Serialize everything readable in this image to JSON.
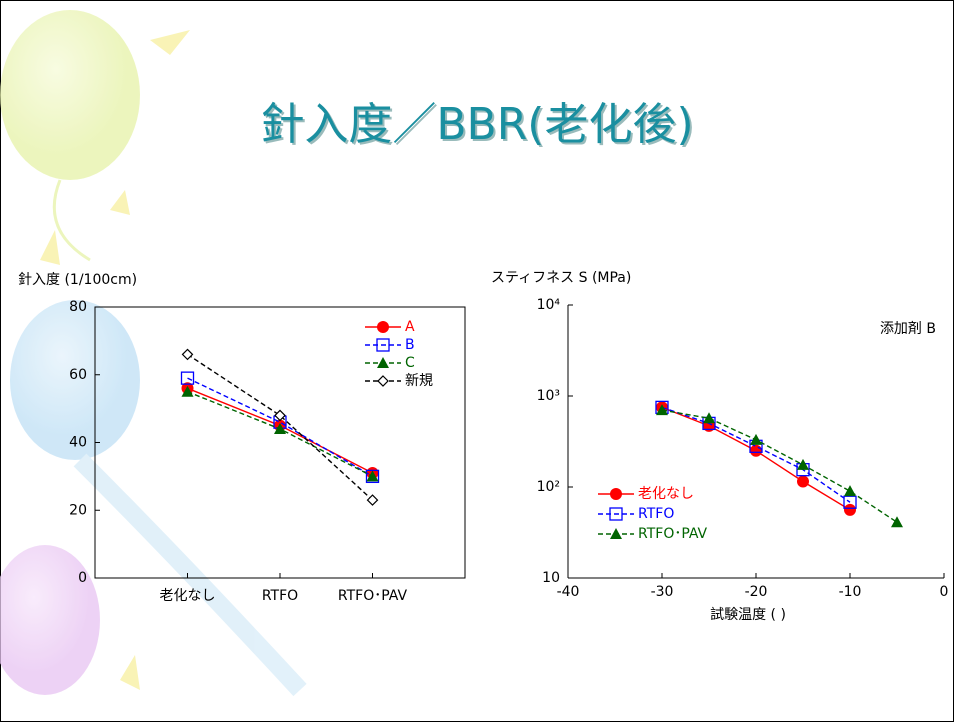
{
  "title": "針入度／BBR(老化後)",
  "chart_data": [
    {
      "type": "line",
      "y_label": "針入度 (1/100cm)",
      "categories": [
        "老化なし",
        "RTFO",
        "RTFO･PAV"
      ],
      "ylim": [
        0,
        80
      ],
      "yticks": [
        0,
        20,
        40,
        60,
        80
      ],
      "log_y": false,
      "legend": "upper right",
      "series": [
        {
          "name": "A",
          "color": "#ff0000",
          "marker": "circle",
          "dashed": false,
          "values": [
            56,
            45,
            31
          ]
        },
        {
          "name": "B",
          "color": "#0000ff",
          "marker": "square",
          "dashed": true,
          "values": [
            59,
            46,
            30
          ]
        },
        {
          "name": "C",
          "color": "#006400",
          "marker": "triangle",
          "dashed": true,
          "values": [
            55,
            44,
            30
          ]
        },
        {
          "name": "新規",
          "color": "#000000",
          "marker": "diamond",
          "dashed": true,
          "values": [
            66,
            48,
            23
          ]
        }
      ]
    },
    {
      "type": "line",
      "y_label": "スティフネス S (MPa)",
      "x_label": "試験温度 ( )",
      "annotation": "添加剤 B",
      "xlim": [
        -40,
        0
      ],
      "xticks": [
        -40,
        -30,
        -20,
        -10,
        0
      ],
      "ylim": [
        10,
        10000
      ],
      "log_y": true,
      "legend": "lower left",
      "yticks": [
        10,
        {
          "value": 100,
          "label": "10²"
        },
        {
          "value": 1000,
          "label": "10³"
        },
        {
          "value": 10000,
          "label": "10⁴"
        }
      ],
      "series": [
        {
          "name": "老化なし",
          "color": "#ff0000",
          "marker": "circle",
          "dashed": false,
          "x": [
            -30,
            -25,
            -20,
            -15,
            -10
          ],
          "values": [
            750,
            470,
            250,
            115,
            56
          ]
        },
        {
          "name": "RTFO",
          "color": "#0000ff",
          "marker": "square",
          "dashed": true,
          "x": [
            -30,
            -25,
            -20,
            -15,
            -10
          ],
          "values": [
            750,
            500,
            280,
            155,
            68
          ]
        },
        {
          "name": "RTFO･PAV",
          "color": "#006400",
          "marker": "triangle",
          "dashed": true,
          "x": [
            -30,
            -25,
            -20,
            -15,
            -10,
            -5
          ],
          "values": [
            700,
            570,
            330,
            175,
            90,
            41
          ]
        }
      ]
    }
  ]
}
